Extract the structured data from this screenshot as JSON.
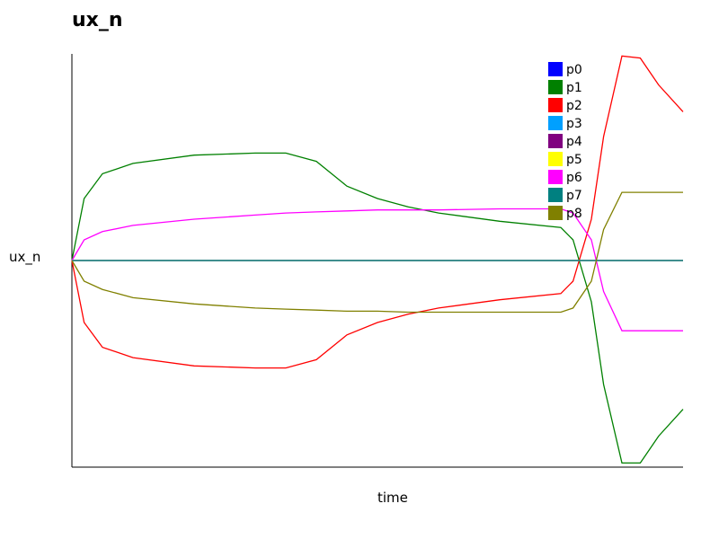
{
  "chart_data": {
    "type": "line",
    "title": "ux_n",
    "xlabel": "time",
    "ylabel": "ux_n",
    "xlim": [
      0,
      1
    ],
    "ylim": [
      -1,
      1
    ],
    "grid": false,
    "legend_position": "top-right",
    "x": [
      0.0,
      0.02,
      0.05,
      0.1,
      0.2,
      0.3,
      0.35,
      0.4,
      0.45,
      0.5,
      0.55,
      0.6,
      0.7,
      0.8,
      0.82,
      0.85,
      0.87,
      0.9,
      0.93,
      0.96,
      1.0
    ],
    "series": [
      {
        "name": "p0",
        "color": "#0000ff",
        "values": [
          0,
          0,
          0,
          0,
          0,
          0,
          0,
          0,
          0,
          0,
          0,
          0,
          0,
          0,
          0,
          0,
          0,
          0,
          0,
          0,
          0
        ]
      },
      {
        "name": "p1",
        "color": "#008000",
        "values": [
          0,
          0.3,
          0.42,
          0.47,
          0.51,
          0.52,
          0.52,
          0.48,
          0.36,
          0.3,
          0.26,
          0.23,
          0.19,
          0.16,
          0.1,
          -0.2,
          -0.6,
          -0.98,
          -0.98,
          -0.85,
          -0.72
        ]
      },
      {
        "name": "p2",
        "color": "#ff0000",
        "values": [
          0,
          -0.3,
          -0.42,
          -0.47,
          -0.51,
          -0.52,
          -0.52,
          -0.48,
          -0.36,
          -0.3,
          -0.26,
          -0.23,
          -0.19,
          -0.16,
          -0.1,
          0.2,
          0.6,
          0.99,
          0.98,
          0.85,
          0.72
        ]
      },
      {
        "name": "p3",
        "color": "#00a0ff",
        "values": [
          0,
          0,
          0,
          0,
          0,
          0,
          0,
          0,
          0,
          0,
          0,
          0,
          0,
          0,
          0,
          0,
          0,
          0,
          0,
          0,
          0
        ]
      },
      {
        "name": "p4",
        "color": "#800080",
        "values": [
          0,
          0,
          0,
          0,
          0,
          0,
          0,
          0,
          0,
          0,
          0,
          0,
          0,
          0,
          0,
          0,
          0,
          0,
          0,
          0,
          0
        ]
      },
      {
        "name": "p5",
        "color": "#ffff00",
        "values": [
          0,
          0,
          0,
          0,
          0,
          0,
          0,
          0,
          0,
          0,
          0,
          0,
          0,
          0,
          0,
          0,
          0,
          0,
          0,
          0,
          0
        ]
      },
      {
        "name": "p6",
        "color": "#ff00ff",
        "values": [
          0,
          0.1,
          0.14,
          0.17,
          0.2,
          0.22,
          0.23,
          0.235,
          0.24,
          0.245,
          0.245,
          0.245,
          0.25,
          0.25,
          0.23,
          0.1,
          -0.15,
          -0.34,
          -0.34,
          -0.34,
          -0.34
        ]
      },
      {
        "name": "p7",
        "color": "#008080",
        "values": [
          0,
          0,
          0,
          0,
          0,
          0,
          0,
          0,
          0,
          0,
          0,
          0,
          0,
          0,
          0,
          0,
          0,
          0,
          0,
          0,
          0
        ]
      },
      {
        "name": "p8",
        "color": "#808000",
        "values": [
          0,
          -0.1,
          -0.14,
          -0.18,
          -0.21,
          -0.23,
          -0.235,
          -0.24,
          -0.245,
          -0.245,
          -0.25,
          -0.25,
          -0.25,
          -0.25,
          -0.23,
          -0.1,
          0.15,
          0.33,
          0.33,
          0.33,
          0.33
        ]
      }
    ]
  }
}
